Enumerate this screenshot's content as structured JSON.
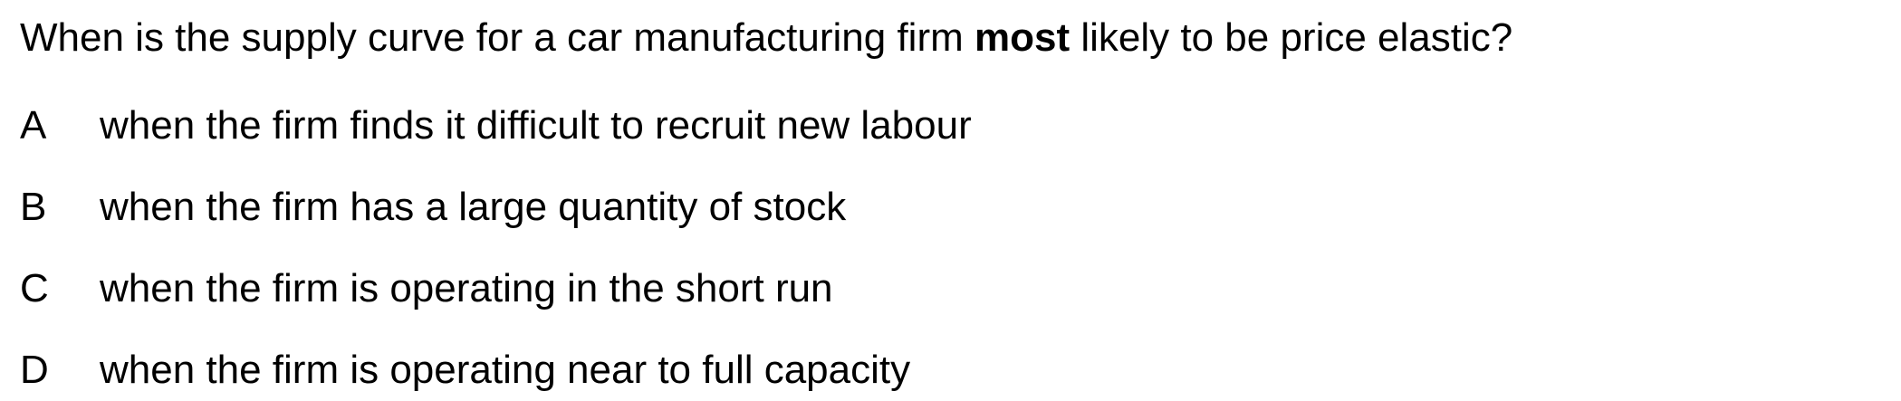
{
  "question": {
    "before": "When is the supply curve for a car manufacturing firm ",
    "emphasis": "most",
    "after": " likely to be price elastic?"
  },
  "options": [
    {
      "letter": "A",
      "text": "when the firm finds it difficult to recruit new labour"
    },
    {
      "letter": "B",
      "text": "when the firm has a large quantity of stock"
    },
    {
      "letter": "C",
      "text": "when the firm is operating in the short run"
    },
    {
      "letter": "D",
      "text": "when the firm is operating near to full capacity"
    }
  ]
}
